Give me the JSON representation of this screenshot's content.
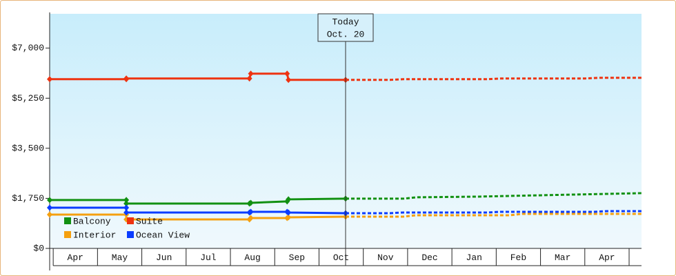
{
  "chart_data": {
    "type": "line",
    "categories": [
      "Apr",
      "May",
      "Jun",
      "Jul",
      "Aug",
      "Sep",
      "Oct",
      "Nov",
      "Dec",
      "Jan",
      "Feb",
      "Mar",
      "Apr"
    ],
    "xlim": [
      -0.08,
      13.28
    ],
    "ylim": [
      0,
      8200
    ],
    "yticks": [
      {
        "value": 0,
        "label": "$0"
      },
      {
        "value": 1750,
        "label": "$1,750"
      },
      {
        "value": 3500,
        "label": "$3,500"
      },
      {
        "value": 5250,
        "label": "$5,250"
      },
      {
        "value": 7000,
        "label": "$7,000"
      }
    ],
    "annotation": {
      "text": "Today",
      "date": "Oct. 20",
      "x": 6.6
    },
    "series": [
      {
        "name": "Balcony",
        "color": "#129112",
        "x": [
          -0.08,
          1.65,
          1.65,
          4.43,
          4.46,
          5.28,
          5.31,
          6.6
        ],
        "values": [
          1690,
          1690,
          1569,
          1569,
          1593,
          1642,
          1714,
          1738
        ],
        "forecast_x": [
          6.6,
          7.9,
          8.2,
          9.6,
          10.3,
          11.8,
          13.28
        ],
        "forecast_values": [
          1738,
          1738,
          1786,
          1810,
          1834,
          1883,
          1931
        ]
      },
      {
        "name": "Suite",
        "color": "#ee3311",
        "x": [
          -0.08,
          1.65,
          1.65,
          4.43,
          4.46,
          5.28,
          5.31,
          6.6
        ],
        "values": [
          5914,
          5914,
          5938,
          5938,
          6107,
          6107,
          5890,
          5890
        ],
        "forecast_x": [
          6.6,
          7.6,
          7.9,
          9.8,
          10.1,
          12.0,
          12.3,
          13.28
        ],
        "forecast_values": [
          5890,
          5890,
          5914,
          5914,
          5938,
          5938,
          5962,
          5962
        ]
      },
      {
        "name": "Interior",
        "color": "#f5a00f",
        "x": [
          -0.08,
          1.65,
          1.65,
          4.43,
          4.46,
          5.28,
          5.31,
          6.6
        ],
        "values": [
          1183,
          1183,
          1014,
          1014,
          1062,
          1062,
          1086,
          1110
        ],
        "forecast_x": [
          6.6,
          7.9,
          8.2,
          10.3,
          10.6,
          13.28
        ],
        "forecast_values": [
          1110,
          1110,
          1159,
          1159,
          1207,
          1207
        ]
      },
      {
        "name": "Ocean View",
        "color": "#0a3cff",
        "x": [
          -0.08,
          1.65,
          1.65,
          4.43,
          4.46,
          5.28,
          5.31,
          6.6
        ],
        "values": [
          1424,
          1424,
          1255,
          1255,
          1279,
          1279,
          1255,
          1231
        ],
        "forecast_x": [
          6.6,
          7.6,
          7.9,
          9.8,
          10.1,
          12.2,
          12.5,
          13.28
        ],
        "forecast_values": [
          1231,
          1231,
          1255,
          1255,
          1279,
          1279,
          1303,
          1303
        ]
      }
    ]
  }
}
